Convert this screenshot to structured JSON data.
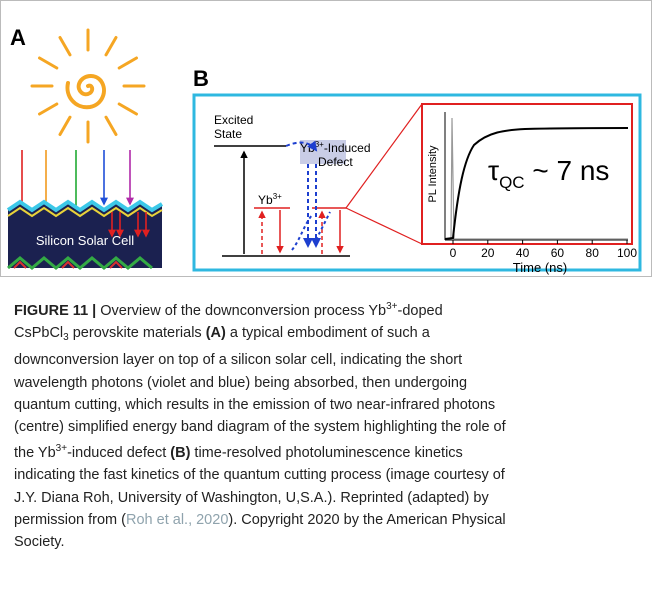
{
  "panel_a": {
    "label": "A",
    "cell_label": "Silicon Solar Cell"
  },
  "panel_b": {
    "label": "B",
    "excited_state": [
      "Excited",
      "State"
    ],
    "defect_label": [
      "Yb",
      "3+",
      "-Induced",
      "Defect"
    ],
    "yb_label": [
      "Yb",
      "3+"
    ],
    "plot": {
      "ylabel": "PL Intensity",
      "xlabel": "Time (ns)",
      "xlim": [
        0,
        100
      ],
      "xticks": [
        0,
        20,
        40,
        60,
        80,
        100
      ],
      "annotation": [
        "τ",
        "QC",
        " ~ 7 ns"
      ]
    }
  },
  "caption": {
    "lines": [
      [
        "FIGURE 11 |",
        " Overview of the downconversion process Yb",
        "3+",
        "-doped"
      ],
      [
        "CsPbCl",
        "3",
        " perovskite materials ",
        "(A)",
        " a typical embodiment of such a"
      ],
      [
        "downconversion layer on top of a silicon solar cell, indicating the short"
      ],
      [
        "wavelength photons (violet and blue) being absorbed, then undergoing"
      ],
      [
        "quantum cutting, which results in the emission of two near-infrared photons"
      ],
      [
        "(centre) simplified energy band diagram of the system highlighting the role of"
      ],
      [
        "the Yb",
        "3+",
        "-induced defect ",
        "(B)",
        " time-resolved photoluminescence kinetics"
      ],
      [
        "indicating the fast kinetics of the quantum cutting process (image courtesy of"
      ],
      [
        "J.Y. Diana Roh, University of Washington, U,S.A.). Reprinted (adapted) by"
      ],
      [
        "permission from (",
        "Roh et al., 2020",
        "). Copyright 2020 by the American Physical"
      ],
      [
        "Society."
      ]
    ]
  }
}
